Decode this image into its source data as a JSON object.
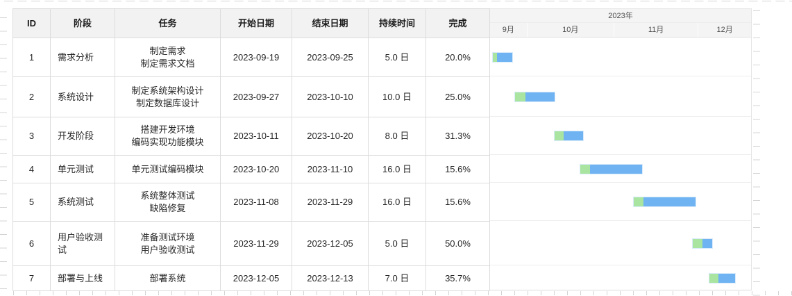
{
  "table": {
    "headers": {
      "id": "ID",
      "phase": "阶段",
      "task": "任务",
      "start": "开始日期",
      "end": "结束日期",
      "duration": "持续时间",
      "complete": "完成"
    },
    "rows": [
      {
        "id": "1",
        "phase": "需求分析",
        "task": "制定需求\n制定需求文档",
        "start": "2023-09-19",
        "end": "2023-09-25",
        "duration": "5.0 日",
        "complete": "20.0%"
      },
      {
        "id": "2",
        "phase": "系统设计",
        "task": "制定系统架构设计\n制定数据库设计",
        "start": "2023-09-27",
        "end": "2023-10-10",
        "duration": "10.0 日",
        "complete": "25.0%"
      },
      {
        "id": "3",
        "phase": "开发阶段",
        "task": "搭建开发环境\n编码实现功能模块",
        "start": "2023-10-11",
        "end": "2023-10-20",
        "duration": "8.0 日",
        "complete": "31.3%"
      },
      {
        "id": "4",
        "phase": "单元测试",
        "task": "单元测试编码模块",
        "start": "2023-10-20",
        "end": "2023-11-10",
        "duration": "16.0 日",
        "complete": "15.6%"
      },
      {
        "id": "5",
        "phase": "系统测试",
        "task": "系统整体测试\n缺陷修复",
        "start": "2023-11-08",
        "end": "2023-11-29",
        "duration": "16.0 日",
        "complete": "15.6%"
      },
      {
        "id": "6",
        "phase": "用户验收测\n试",
        "task": "准备测试环境\n用户验收测试",
        "start": "2023-11-29",
        "end": "2023-12-05",
        "duration": "5.0 日",
        "complete": "50.0%"
      },
      {
        "id": "7",
        "phase": "部署与上线",
        "task": "部署系统",
        "start": "2023-12-05",
        "end": "2023-12-13",
        "duration": "7.0 日",
        "complete": "35.7%"
      }
    ]
  },
  "chart_data": {
    "type": "gantt",
    "year_label": "2023年",
    "axis": {
      "start": "2023-09-18",
      "end": "2023-12-20"
    },
    "months": [
      {
        "label": "9月",
        "from": "2023-09-18",
        "to": "2023-10-01"
      },
      {
        "label": "10月",
        "from": "2023-10-01",
        "to": "2023-11-01"
      },
      {
        "label": "11月",
        "from": "2023-11-01",
        "to": "2023-12-01"
      },
      {
        "label": "12月",
        "from": "2023-12-01",
        "to": "2023-12-20"
      }
    ],
    "tasks": [
      {
        "id": 1,
        "name": "需求分析",
        "start": "2023-09-19",
        "end": "2023-09-25",
        "duration_days": 5,
        "completion": 20.0
      },
      {
        "id": 2,
        "name": "系统设计",
        "start": "2023-09-27",
        "end": "2023-10-10",
        "duration_days": 10,
        "completion": 25.0
      },
      {
        "id": 3,
        "name": "开发阶段",
        "start": "2023-10-11",
        "end": "2023-10-20",
        "duration_days": 8,
        "completion": 31.3
      },
      {
        "id": 4,
        "name": "单元测试",
        "start": "2023-10-20",
        "end": "2023-11-10",
        "duration_days": 16,
        "completion": 15.6
      },
      {
        "id": 5,
        "name": "系统测试",
        "start": "2023-11-08",
        "end": "2023-11-29",
        "duration_days": 16,
        "completion": 15.6
      },
      {
        "id": 6,
        "name": "用户验收测试",
        "start": "2023-11-29",
        "end": "2023-12-05",
        "duration_days": 5,
        "completion": 50.0
      },
      {
        "id": 7,
        "name": "部署与上线",
        "start": "2023-12-05",
        "end": "2023-12-13",
        "duration_days": 7,
        "completion": 35.7
      }
    ],
    "colors": {
      "bar": "#6fb3f2",
      "progress": "#a9e5a0"
    }
  }
}
